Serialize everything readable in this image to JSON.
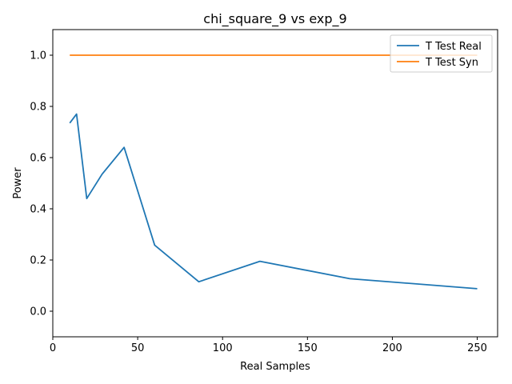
{
  "chart_data": {
    "type": "line",
    "title": "chi_square_9 vs exp_9",
    "xlabel": "Real Samples",
    "ylabel": "Power",
    "xlim": [
      0,
      262
    ],
    "ylim": [
      -0.1,
      1.1
    ],
    "xticks": [
      0,
      50,
      100,
      150,
      200,
      250
    ],
    "yticks": [
      0.0,
      0.2,
      0.4,
      0.6,
      0.8,
      1.0
    ],
    "xtick_labels": [
      "0",
      "50",
      "100",
      "150",
      "200",
      "250"
    ],
    "ytick_labels": [
      "0.0",
      "0.2",
      "0.4",
      "0.6",
      "0.8",
      "1.0"
    ],
    "grid": false,
    "legend_position": "top-right",
    "series": [
      {
        "name": "T Test Real",
        "color": "#1f77b4",
        "x": [
          10,
          14,
          20,
          29,
          42,
          60,
          86,
          122,
          175,
          250
        ],
        "y": [
          0.735,
          0.77,
          0.44,
          0.535,
          0.64,
          0.258,
          0.115,
          0.195,
          0.127,
          0.088
        ]
      },
      {
        "name": "T Test Syn",
        "color": "#ff7f0e",
        "x": [
          10,
          14,
          20,
          29,
          42,
          60,
          86,
          122,
          175,
          250
        ],
        "y": [
          1.0,
          1.0,
          1.0,
          1.0,
          1.0,
          1.0,
          1.0,
          1.0,
          1.0,
          1.0
        ]
      }
    ]
  }
}
